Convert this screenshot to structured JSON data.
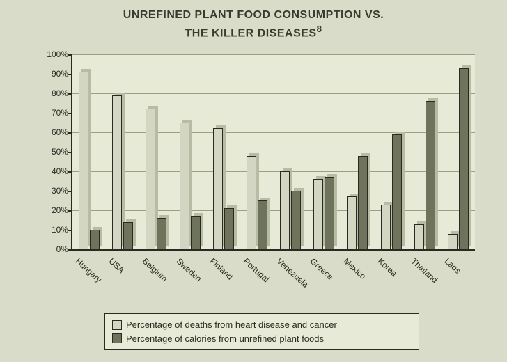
{
  "title_line1": "UNREFINED PLANT FOOD CONSUMPTION VS.",
  "title_line2": "THE KILLER DISEASES",
  "title_sup": "8",
  "chart": {
    "type": "bar",
    "ylim": [
      0,
      100
    ],
    "ytick_step": 10,
    "ylabel_suffix": "%",
    "background_color": "#e8ead8",
    "page_background": "#d8dcc8",
    "grid_color": "#9aa086",
    "axis_color": "#2a2a22",
    "bar_light_color": "#d4d6c4",
    "bar_dark_color": "#6e745c",
    "categories": [
      "Hungary",
      "USA",
      "Belgium",
      "Sweden",
      "Finland",
      "Portugal",
      "Venezuela",
      "Greece",
      "Mexico",
      "Korea",
      "Thailand",
      "Laos"
    ],
    "series": [
      {
        "name": "deaths",
        "label": "Percentage of deaths from heart disease and cancer",
        "color": "#d4d6c4",
        "values": [
          91,
          79,
          72,
          65,
          62,
          48,
          40,
          36,
          27,
          23,
          13,
          8
        ]
      },
      {
        "name": "calories",
        "label": "Percentage of calories from unrefined plant foods",
        "color": "#6e745c",
        "values": [
          10,
          14,
          16,
          17,
          21,
          25,
          30,
          37,
          48,
          59,
          76,
          93
        ]
      }
    ]
  },
  "legend": {
    "item1": "Percentage of deaths from heart disease and cancer",
    "item2": "Percentage of calories from unrefined plant foods"
  }
}
